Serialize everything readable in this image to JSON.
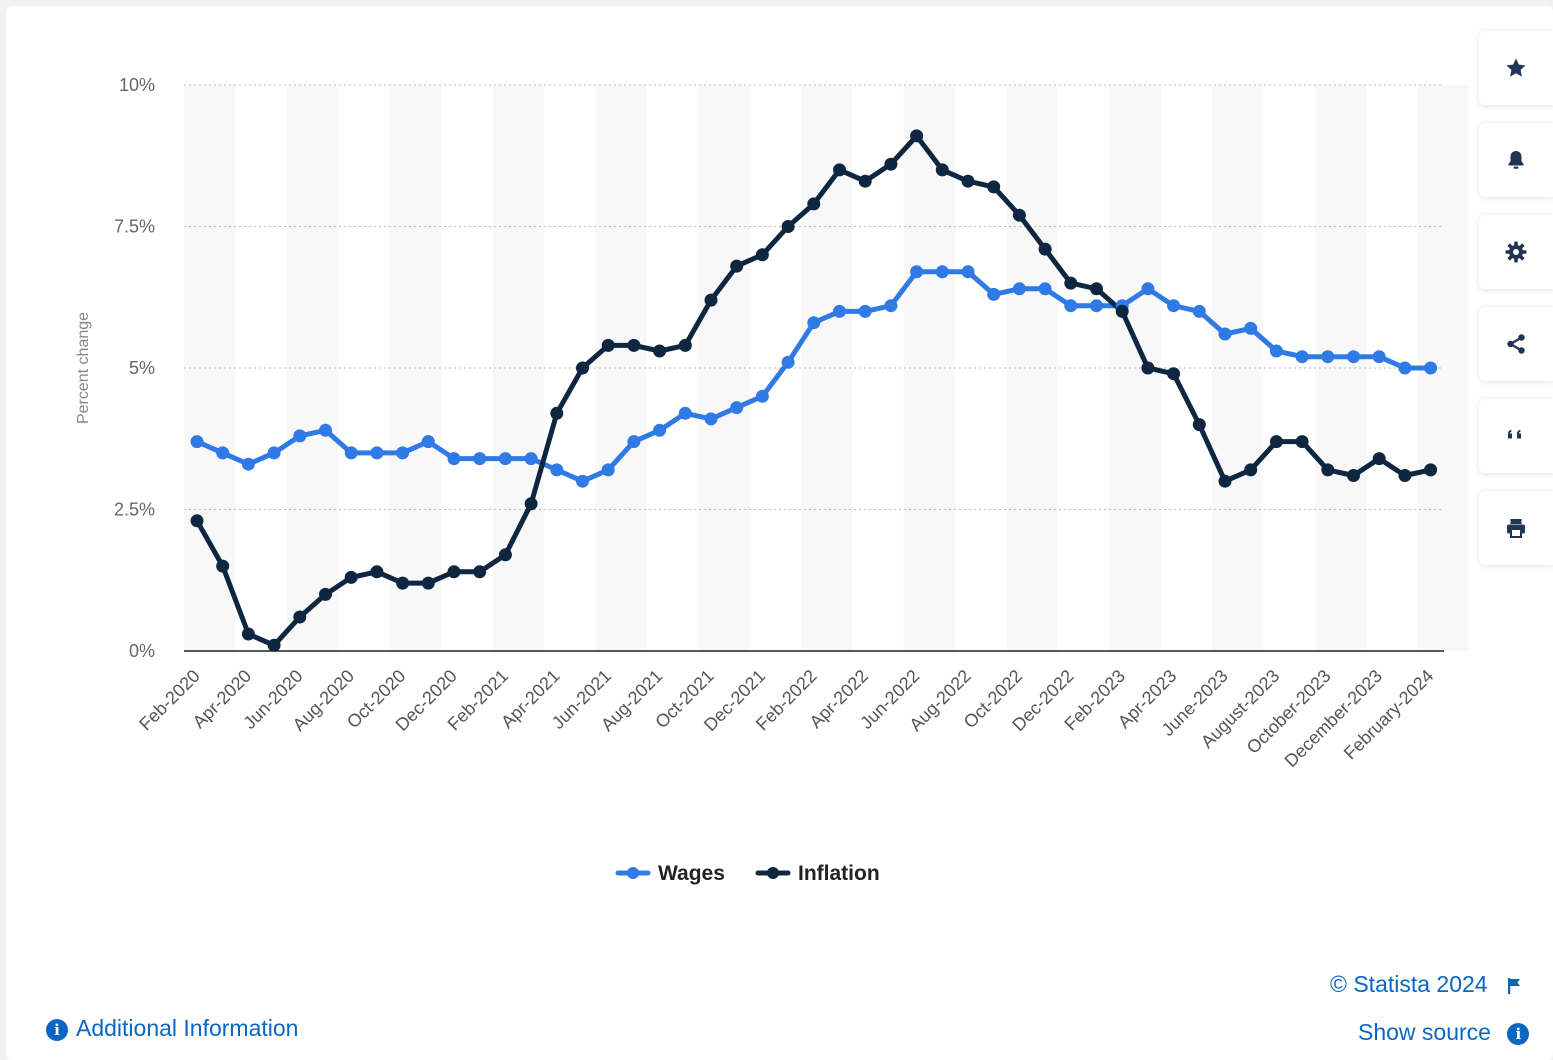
{
  "chart_data": {
    "type": "line",
    "ylabel": "Percent change",
    "ylim": [
      0,
      10
    ],
    "yticks": [
      "10%",
      "7.5%",
      "5%",
      "2.5%",
      "0%"
    ],
    "ytick_values": [
      10,
      7.5,
      5,
      2.5,
      0
    ],
    "x_tick_labels": [
      "Feb-2020",
      "Apr-2020",
      "Jun-2020",
      "Aug-2020",
      "Oct-2020",
      "Dec-2020",
      "Feb-2021",
      "Apr-2021",
      "Jun-2021",
      "Aug-2021",
      "Oct-2021",
      "Dec-2021",
      "Feb-2022",
      "Apr-2022",
      "Jun-2022",
      "Aug-2022",
      "Oct-2022",
      "Dec-2022",
      "Feb-2023",
      "Apr-2023",
      "June-2023",
      "August-2023",
      "October-2023",
      "December-2023",
      "February-2024"
    ],
    "x_count": 49,
    "grid": true,
    "legend": "bottom-center",
    "series": [
      {
        "name": "Wages",
        "color": "#2f7ae5",
        "values": [
          3.7,
          3.5,
          3.3,
          3.5,
          3.8,
          3.9,
          3.5,
          3.5,
          3.5,
          3.7,
          3.4,
          3.4,
          3.4,
          3.4,
          3.2,
          3.0,
          3.2,
          3.7,
          3.9,
          4.2,
          4.1,
          4.3,
          4.5,
          5.1,
          5.8,
          6.0,
          6.0,
          6.1,
          6.7,
          6.7,
          6.7,
          6.3,
          6.4,
          6.4,
          6.1,
          6.1,
          6.1,
          6.4,
          6.1,
          6.0,
          5.6,
          5.7,
          5.3,
          5.2,
          5.2,
          5.2,
          5.2,
          5.0,
          5.0
        ]
      },
      {
        "name": "Inflation",
        "color": "#0f2640",
        "values": [
          2.3,
          1.5,
          0.3,
          0.1,
          0.6,
          1.0,
          1.3,
          1.4,
          1.2,
          1.2,
          1.4,
          1.4,
          1.7,
          2.6,
          4.2,
          5.0,
          5.4,
          5.4,
          5.3,
          5.4,
          6.2,
          6.8,
          7.0,
          7.5,
          7.9,
          8.5,
          8.3,
          8.6,
          9.1,
          8.5,
          8.3,
          8.2,
          7.7,
          7.1,
          6.5,
          6.4,
          6.0,
          5.0,
          4.9,
          4.0,
          3.0,
          3.2,
          3.7,
          3.7,
          3.2,
          3.1,
          3.4,
          3.1,
          3.2
        ]
      }
    ]
  },
  "footer": {
    "copyright": "© Statista 2024",
    "show_source": "Show source",
    "additional_info": "Additional Information"
  },
  "toolbar": {
    "icons": [
      "star-icon",
      "bell-icon",
      "gear-icon",
      "share-icon",
      "quote-icon",
      "print-icon"
    ]
  }
}
